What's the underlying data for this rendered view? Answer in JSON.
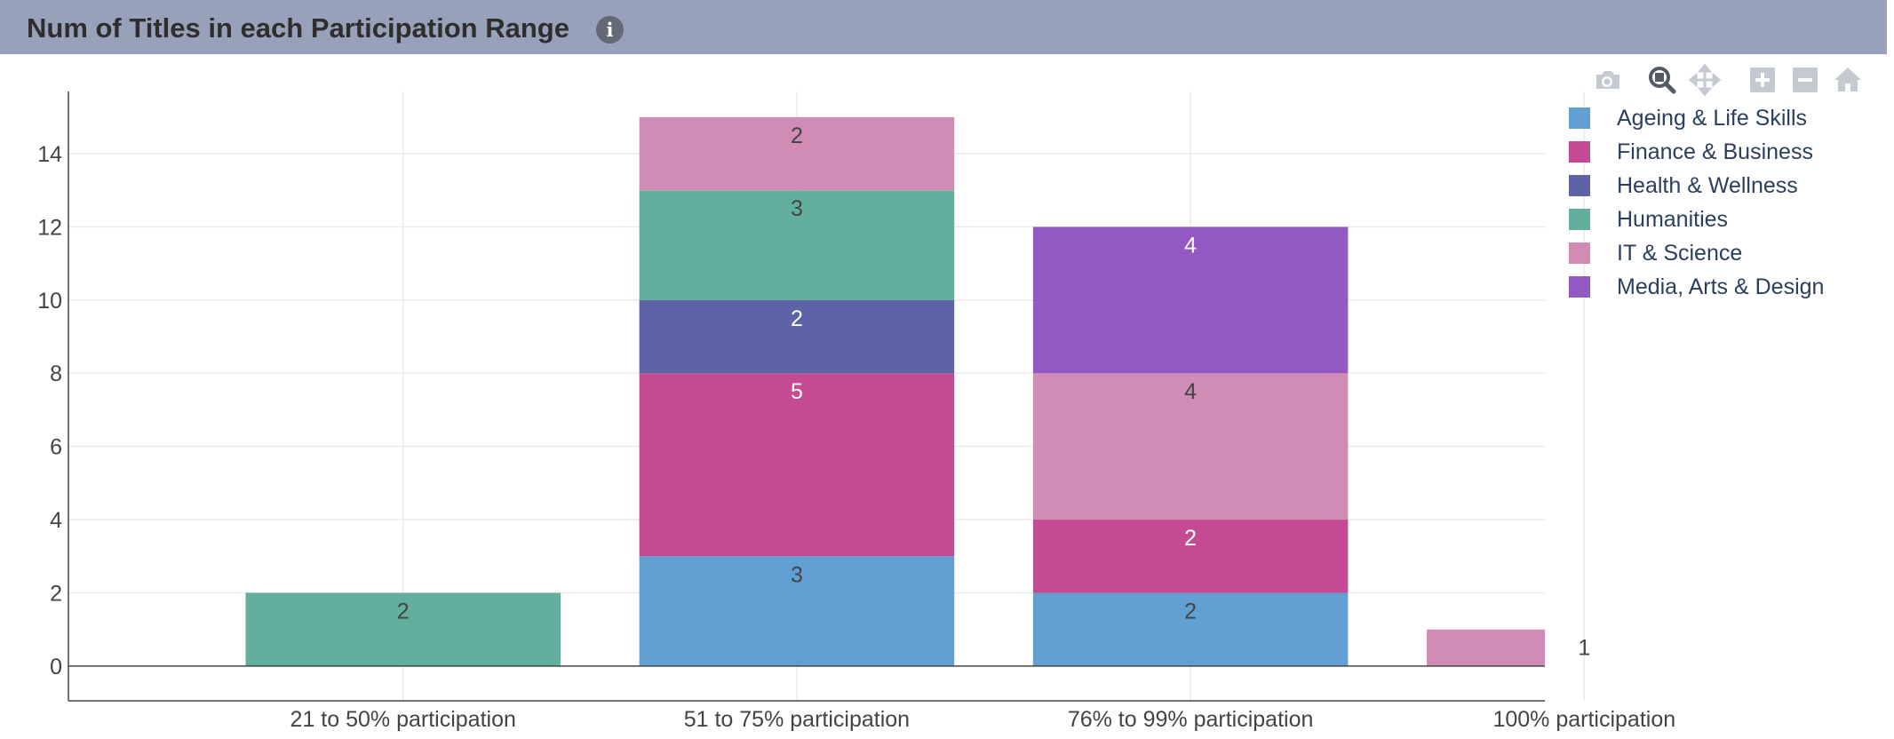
{
  "header": {
    "title": "Num of Titles in each Participation Range",
    "info_icon_glyph": "i"
  },
  "modebar": {
    "buttons": [
      {
        "name": "camera-icon",
        "color": "#c5cad2"
      },
      {
        "name": "zoom-icon",
        "color": "#555b66"
      },
      {
        "name": "pan-icon",
        "color": "#c5cad2"
      },
      {
        "name": "zoom-in-icon",
        "color": "#c5cad2"
      },
      {
        "name": "zoom-out-icon",
        "color": "#c5cad2"
      },
      {
        "name": "home-icon",
        "color": "#c5cad2"
      }
    ]
  },
  "chart_data": {
    "type": "bar",
    "barmode": "stack",
    "title": "Num of Titles in each Participation Range",
    "xlabel": "",
    "ylabel": "",
    "categories": [
      "21 to 50% participation",
      "51 to 75% participation",
      "76% to 99% participation",
      "100% participation"
    ],
    "series": [
      {
        "name": "Ageing & Life Skills",
        "color": "#629fd3",
        "values": [
          0,
          3,
          2,
          0
        ],
        "text_color": "#444444"
      },
      {
        "name": "Finance & Business",
        "color": "#c44b93",
        "values": [
          0,
          5,
          2,
          0
        ],
        "text_color": "#ffffff"
      },
      {
        "name": "Health & Wellness",
        "color": "#5d63a6",
        "values": [
          0,
          2,
          0,
          0
        ],
        "text_color": "#ffffff"
      },
      {
        "name": "Humanities",
        "color": "#63af9d",
        "values": [
          2,
          3,
          0,
          0
        ],
        "text_color": "#444444"
      },
      {
        "name": "IT & Science",
        "color": "#d08cb5",
        "values": [
          0,
          2,
          4,
          1
        ],
        "text_color": "#444444"
      },
      {
        "name": "Media, Arts & Design",
        "color": "#9358c1",
        "values": [
          0,
          0,
          4,
          0
        ],
        "text_color": "#ffffff"
      }
    ],
    "ylim": [
      -0.95,
      15.7
    ],
    "yticks": [
      0,
      2,
      4,
      6,
      8,
      10,
      12,
      14
    ],
    "grid": true,
    "legend_position": "top-right"
  }
}
